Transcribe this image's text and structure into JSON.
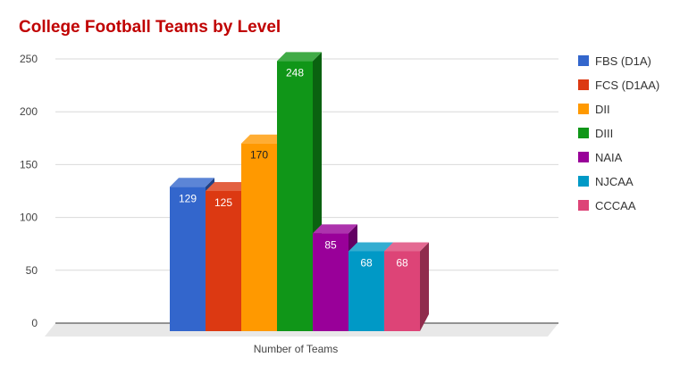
{
  "chart_data": {
    "type": "bar",
    "title": "College Football Teams by Level",
    "categories": [
      "Number of Teams"
    ],
    "xlabel": "Number of Teams",
    "ylabel": "",
    "ylim": [
      0,
      250
    ],
    "yticks": [
      0,
      50,
      100,
      150,
      200,
      250
    ],
    "grid": true,
    "legend_position": "right",
    "series": [
      {
        "name": "FBS (D1A)",
        "values": [
          129
        ],
        "color": "#3366cc",
        "label_color": "#ffffff"
      },
      {
        "name": "FCS (D1AA)",
        "values": [
          125
        ],
        "color": "#dc3912",
        "label_color": "#ffffff"
      },
      {
        "name": "DII",
        "values": [
          170
        ],
        "color": "#ff9900",
        "label_color": "#222222"
      },
      {
        "name": "DIII",
        "values": [
          248
        ],
        "color": "#109618",
        "label_color": "#ffffff"
      },
      {
        "name": "NAIA",
        "values": [
          85
        ],
        "color": "#990099",
        "label_color": "#ffffff"
      },
      {
        "name": "NJCAA",
        "values": [
          68
        ],
        "color": "#0099c6",
        "label_color": "#ffffff"
      },
      {
        "name": "CCCAA",
        "values": [
          68
        ],
        "color": "#dd4477",
        "label_color": "#ffffff"
      }
    ]
  }
}
